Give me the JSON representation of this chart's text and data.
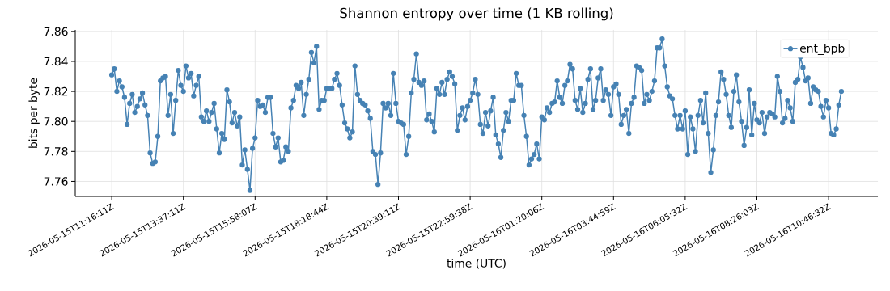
{
  "chart_data": {
    "type": "line",
    "title": "Shannon entropy over time (1 KB rolling)",
    "xlabel": "time (UTC)",
    "ylabel": "bits per byte",
    "categories": [
      "2026-05-15T11:16:11Z",
      null,
      null,
      null,
      null,
      null,
      null,
      null,
      null,
      null,
      null,
      null,
      null,
      null,
      null,
      null,
      null,
      null,
      null,
      null,
      null,
      null,
      null,
      null,
      null,
      null,
      null,
      null,
      "2026-05-15T13:37:11Z",
      null,
      null,
      null,
      null,
      null,
      null,
      null,
      null,
      null,
      null,
      null,
      null,
      null,
      null,
      null,
      null,
      null,
      null,
      null,
      null,
      null,
      null,
      null,
      null,
      null,
      null,
      null,
      "2026-05-15T15:58:07Z",
      null,
      null,
      null,
      null,
      null,
      null,
      null,
      null,
      null,
      null,
      null,
      null,
      null,
      null,
      null,
      null,
      null,
      null,
      null,
      null,
      null,
      null,
      null,
      null,
      null,
      null,
      null,
      "2026-05-15T18:18:44Z",
      null,
      null,
      null,
      null,
      null,
      null,
      null,
      null,
      null,
      null,
      null,
      null,
      null,
      null,
      null,
      null,
      null,
      null,
      null,
      null,
      null,
      null,
      null,
      null,
      null,
      null,
      null,
      "2026-05-15T20:39:11Z",
      null,
      null,
      null,
      null,
      null,
      null,
      null,
      null,
      null,
      null,
      null,
      null,
      null,
      null,
      null,
      null,
      null,
      null,
      null,
      null,
      null,
      null,
      null,
      null,
      null,
      null,
      null,
      "2026-05-15T22:59:38Z",
      null,
      null,
      null,
      null,
      null,
      null,
      null,
      null,
      null,
      null,
      null,
      null,
      null,
      null,
      null,
      null,
      null,
      null,
      null,
      null,
      null,
      null,
      null,
      null,
      null,
      null,
      null,
      "2026-05-16T01:20:06Z",
      null,
      null,
      null,
      null,
      null,
      null,
      null,
      null,
      null,
      null,
      null,
      null,
      null,
      null,
      null,
      null,
      null,
      null,
      null,
      null,
      null,
      null,
      null,
      null,
      null,
      null,
      null,
      "2026-05-16T03:44:59Z",
      null,
      null,
      null,
      null,
      null,
      null,
      null,
      null,
      null,
      null,
      null,
      null,
      null,
      null,
      null,
      null,
      null,
      null,
      null,
      null,
      null,
      null,
      null,
      null,
      null,
      null,
      null,
      "2026-05-16T06:05:32Z",
      null,
      null,
      null,
      null,
      null,
      null,
      null,
      null,
      null,
      null,
      null,
      null,
      null,
      null,
      null,
      null,
      null,
      null,
      null,
      null,
      null,
      null,
      null,
      null,
      null,
      null,
      null,
      "2026-05-16T08:26:03Z",
      null,
      null,
      null,
      null,
      null,
      null,
      null,
      null,
      null,
      null,
      null,
      null,
      null,
      null,
      null,
      null,
      null,
      null,
      null,
      null,
      null,
      null,
      null,
      null,
      null,
      null,
      null,
      "2026-05-16T10:46:32Z",
      null,
      null,
      null,
      null,
      null
    ],
    "series": [
      {
        "name": "ent_bpb",
        "color": "#4682b4",
        "values": [
          7.831,
          7.835,
          7.82,
          7.827,
          7.823,
          7.816,
          7.798,
          7.812,
          7.818,
          7.806,
          7.81,
          7.815,
          7.819,
          7.811,
          7.804,
          7.779,
          7.772,
          7.773,
          7.79,
          7.827,
          7.829,
          7.83,
          7.804,
          7.818,
          7.792,
          7.814,
          7.834,
          7.824,
          7.82,
          7.837,
          7.829,
          7.832,
          7.817,
          7.824,
          7.83,
          7.803,
          7.8,
          7.807,
          7.8,
          7.806,
          7.812,
          7.795,
          7.779,
          7.792,
          7.788,
          7.821,
          7.813,
          7.799,
          7.806,
          7.797,
          7.803,
          7.771,
          7.781,
          7.768,
          7.754,
          7.782,
          7.789,
          7.814,
          7.81,
          7.811,
          7.806,
          7.816,
          7.816,
          7.792,
          7.783,
          7.789,
          7.773,
          7.774,
          7.783,
          7.78,
          7.809,
          7.814,
          7.824,
          7.822,
          7.826,
          7.804,
          7.818,
          7.828,
          7.846,
          7.839,
          7.85,
          7.808,
          7.814,
          7.814,
          7.822,
          7.822,
          7.822,
          7.828,
          7.832,
          7.824,
          7.811,
          7.799,
          7.795,
          7.789,
          7.793,
          7.837,
          7.818,
          7.814,
          7.812,
          7.811,
          7.807,
          7.802,
          7.78,
          7.778,
          7.758,
          7.779,
          7.812,
          7.809,
          7.812,
          7.804,
          7.832,
          7.812,
          7.8,
          7.799,
          7.798,
          7.778,
          7.79,
          7.819,
          7.828,
          7.845,
          7.826,
          7.824,
          7.827,
          7.801,
          7.805,
          7.8,
          7.793,
          7.822,
          7.818,
          7.826,
          7.818,
          7.828,
          7.833,
          7.83,
          7.825,
          7.794,
          7.804,
          7.809,
          7.801,
          7.81,
          7.814,
          7.819,
          7.828,
          7.818,
          7.798,
          7.792,
          7.806,
          7.797,
          7.807,
          7.816,
          7.791,
          7.785,
          7.776,
          7.794,
          7.806,
          7.8,
          7.814,
          7.814,
          7.832,
          7.824,
          7.824,
          7.804,
          7.79,
          7.771,
          7.775,
          7.778,
          7.785,
          7.775,
          7.803,
          7.801,
          7.809,
          7.806,
          7.812,
          7.813,
          7.827,
          7.816,
          7.812,
          7.824,
          7.827,
          7.838,
          7.835,
          7.814,
          7.808,
          7.822,
          7.806,
          7.812,
          7.828,
          7.835,
          7.808,
          7.814,
          7.829,
          7.835,
          7.814,
          7.821,
          7.818,
          7.804,
          7.823,
          7.825,
          7.818,
          7.798,
          7.804,
          7.808,
          7.792,
          7.812,
          7.816,
          7.837,
          7.836,
          7.834,
          7.812,
          7.818,
          7.814,
          7.82,
          7.827,
          7.849,
          7.849,
          7.855,
          7.837,
          7.823,
          7.817,
          7.815,
          7.804,
          7.795,
          7.804,
          7.795,
          7.807,
          7.778,
          7.803,
          7.795,
          7.78,
          7.804,
          7.814,
          7.799,
          7.819,
          7.792,
          7.766,
          7.781,
          7.804,
          7.813,
          7.833,
          7.828,
          7.818,
          7.804,
          7.796,
          7.82,
          7.831,
          7.813,
          7.8,
          7.784,
          7.796,
          7.821,
          7.791,
          7.812,
          7.801,
          7.799,
          7.806,
          7.792,
          7.803,
          7.806,
          7.805,
          7.803,
          7.83,
          7.82,
          7.799,
          7.802,
          7.814,
          7.809,
          7.8,
          7.826,
          7.828,
          7.843,
          7.836,
          7.827,
          7.829,
          7.812,
          7.823,
          7.821,
          7.82,
          7.81,
          7.803,
          7.814,
          7.809,
          7.792,
          7.791,
          7.795,
          7.811,
          7.82
        ]
      }
    ],
    "ylim": [
      7.75,
      7.861
    ],
    "yticks": [
      {
        "value": 7.76,
        "label": "7.76"
      },
      {
        "value": 7.78,
        "label": "7.78"
      },
      {
        "value": 7.8,
        "label": "7.80"
      },
      {
        "value": 7.82,
        "label": "7.82"
      },
      {
        "value": 7.84,
        "label": "7.84"
      },
      {
        "value": 7.86,
        "label": "7.86"
      }
    ],
    "grid": true,
    "legend": "top right",
    "marker": "circle",
    "line_style": "solid"
  }
}
